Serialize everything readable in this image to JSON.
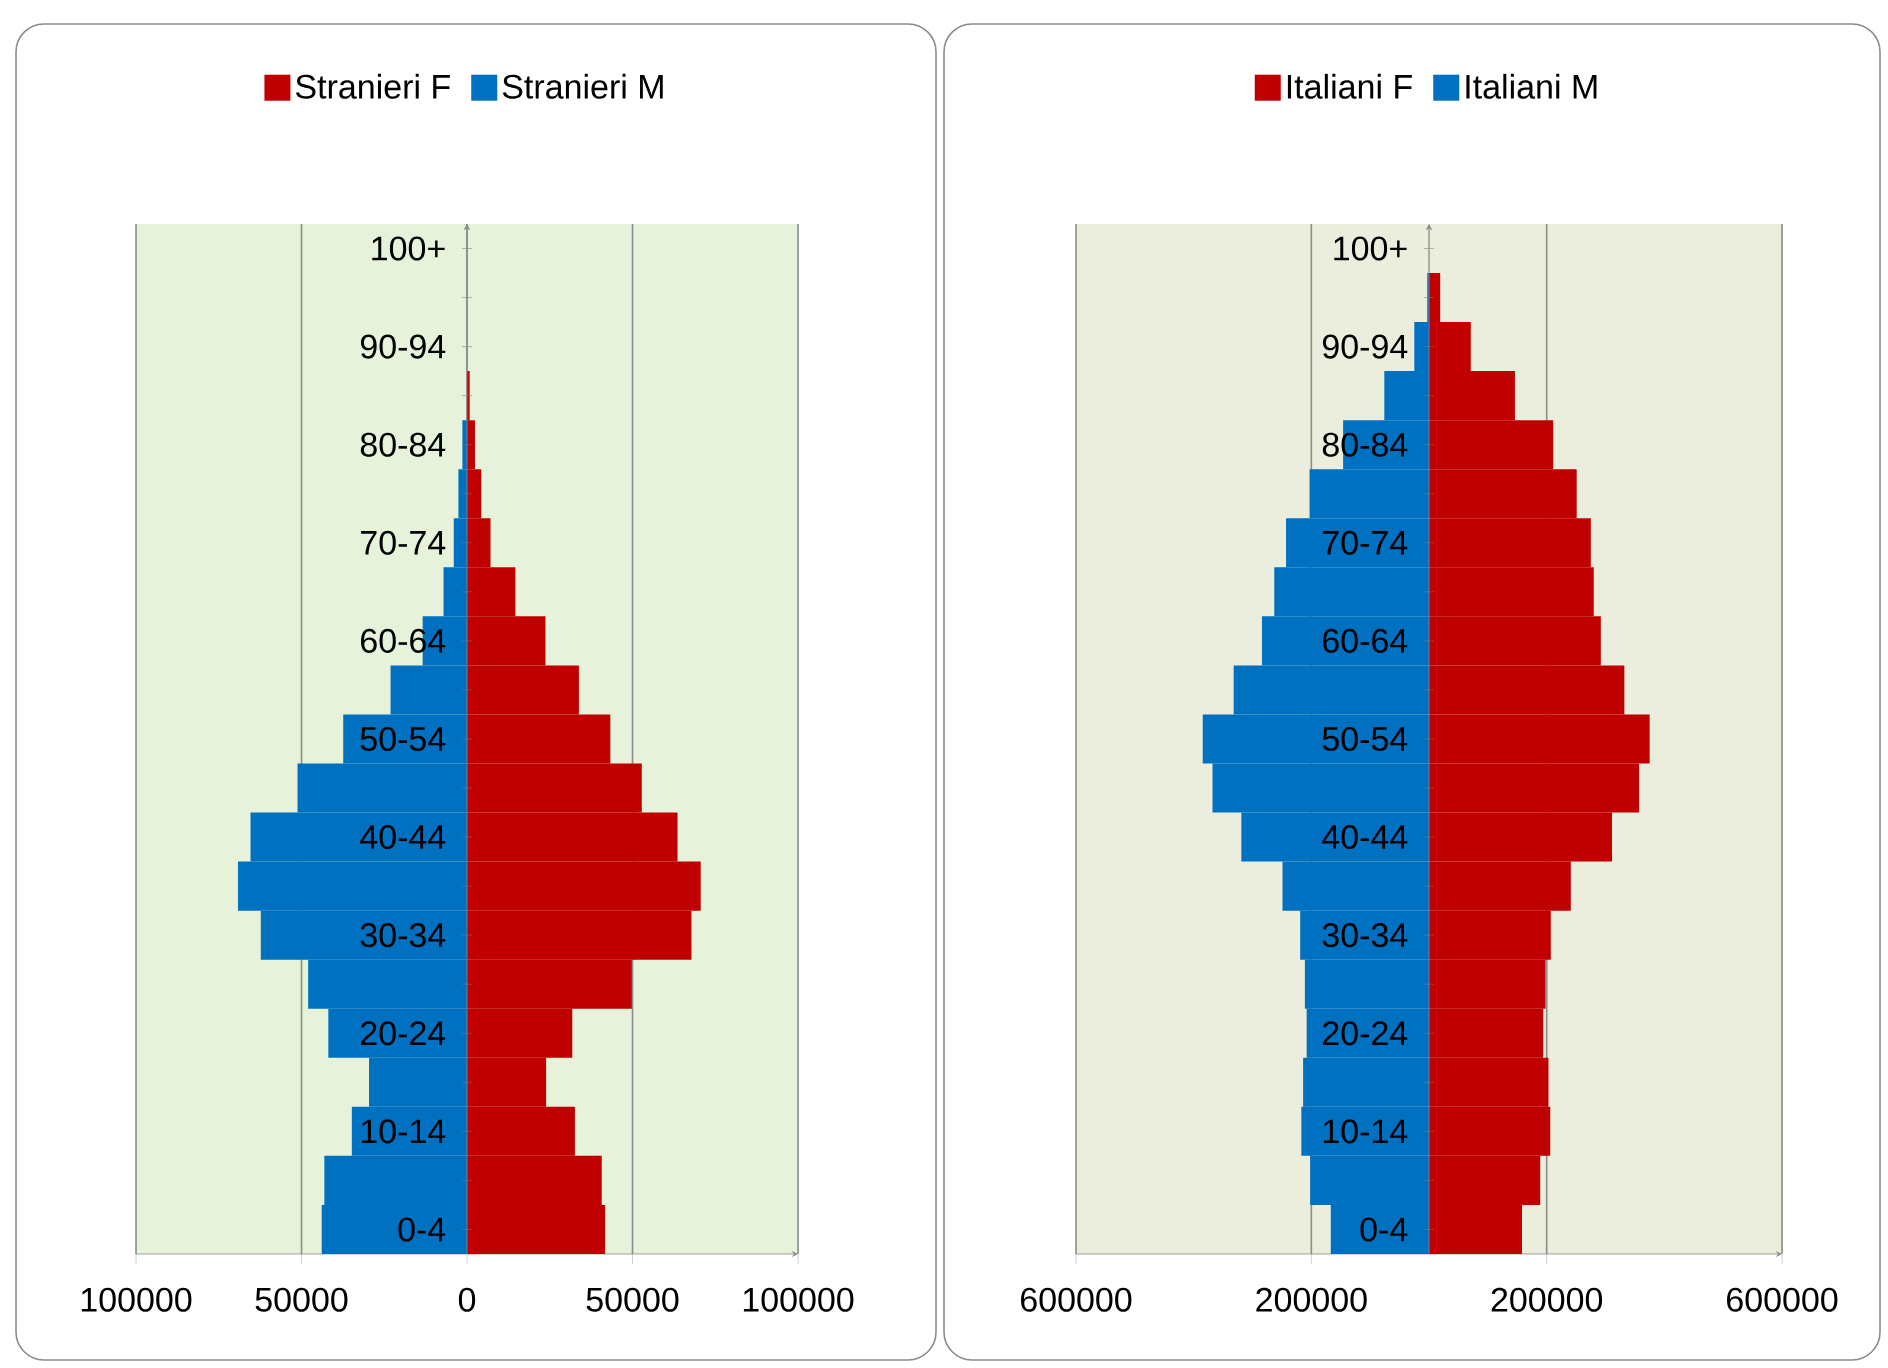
{
  "chart_data": [
    {
      "type": "bar",
      "orientation": "horizontal",
      "categories": [
        "100+",
        null,
        "90-94",
        null,
        "80-84",
        null,
        "70-74",
        null,
        "60-64",
        null,
        "50-54",
        null,
        "40-44",
        null,
        "30-34",
        null,
        "20-24",
        null,
        "10-14",
        null,
        "0-4"
      ],
      "series": [
        {
          "name": "Stranieri F",
          "color": "#c00000",
          "values": [
            0,
            0,
            0,
            800,
            2400,
            4300,
            7100,
            14600,
            23700,
            33800,
            43300,
            52800,
            63600,
            70600,
            67800,
            49800,
            31800,
            23900,
            32600,
            40700,
            41700
          ]
        },
        {
          "name": "Stranieri M",
          "color": "#0070c0",
          "values": [
            0,
            0,
            0,
            null,
            -1400,
            -2600,
            -4000,
            -7100,
            -13400,
            -23100,
            -37400,
            -51200,
            -65400,
            -69200,
            -62300,
            -48000,
            -41900,
            -29600,
            -34800,
            -43100,
            -43900
          ]
        }
      ],
      "stacked": true,
      "xlim": [
        -100000,
        100000
      ],
      "xticks": [
        {
          "value": -100000,
          "label": "100000"
        },
        {
          "value": -50000,
          "label": "50000"
        },
        0,
        50000,
        100000
      ],
      "grid": "x",
      "legend": "top"
    },
    {
      "type": "bar",
      "orientation": "horizontal",
      "categories": [
        "100+",
        null,
        "90-94",
        null,
        "80-84",
        null,
        "70-74",
        null,
        "60-64",
        null,
        "50-54",
        null,
        "40-44",
        null,
        "30-34",
        null,
        "20-24",
        null,
        "10-14",
        null,
        "0-4"
      ],
      "series": [
        {
          "name": "Italiani F",
          "color": "#c00000",
          "values": [
            null,
            19000,
            71000,
            146000,
            211000,
            251000,
            275000,
            280000,
            292000,
            332000,
            375000,
            357000,
            311000,
            241000,
            207000,
            198000,
            194000,
            203000,
            206000,
            189000,
            158000
          ]
        },
        {
          "name": "Italiani M",
          "color": "#0070c0",
          "values": [
            0,
            -3000,
            -25000,
            -76000,
            -146000,
            -203000,
            -243000,
            -263000,
            -284000,
            -332000,
            -385000,
            -368000,
            -319000,
            -249000,
            -219000,
            -211000,
            -208000,
            -214000,
            -217000,
            -202000,
            -167000
          ]
        }
      ],
      "stacked": true,
      "xlim": [
        -600000,
        600000
      ],
      "xticks": [
        {
          "value": -600000,
          "label": "600000"
        },
        {
          "value": -200000,
          "label": "200000"
        },
        200000,
        600000
      ],
      "grid": "x",
      "legend": "top"
    }
  ]
}
